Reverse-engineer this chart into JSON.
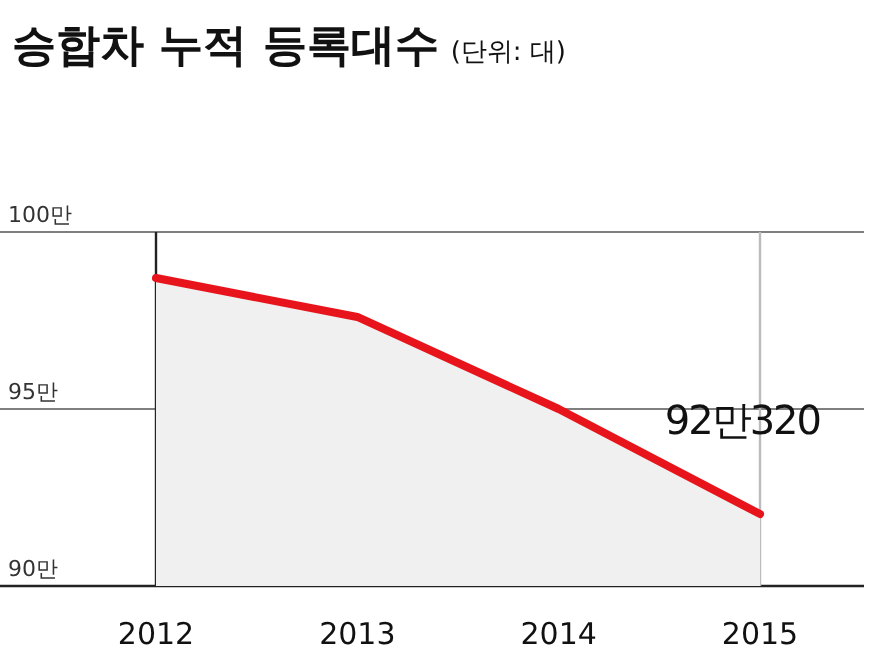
{
  "chart_data": {
    "type": "area",
    "title": "승합차 누적 등록대수",
    "subtitle": "(단위: 대)",
    "categories": [
      "2012",
      "2013",
      "2014",
      "2015"
    ],
    "series": [
      {
        "color": "#e8141b",
        "values": [
          98.7,
          97.6,
          95.0,
          92.032
        ]
      }
    ],
    "ylim": [
      90,
      100
    ],
    "yticks": [
      {
        "value": 90,
        "label": "90만"
      },
      {
        "value": 95,
        "label": "95만"
      },
      {
        "value": 100,
        "label": "100만"
      }
    ],
    "grid": "y",
    "ref_lines": [
      {
        "axis": "x",
        "value": "2012",
        "color": "#222222"
      },
      {
        "axis": "x",
        "value": "2015",
        "color": "#bbbbbb"
      }
    ],
    "annotations": [
      {
        "text": "92만320",
        "x": "2015",
        "y": 92.032
      }
    ]
  }
}
